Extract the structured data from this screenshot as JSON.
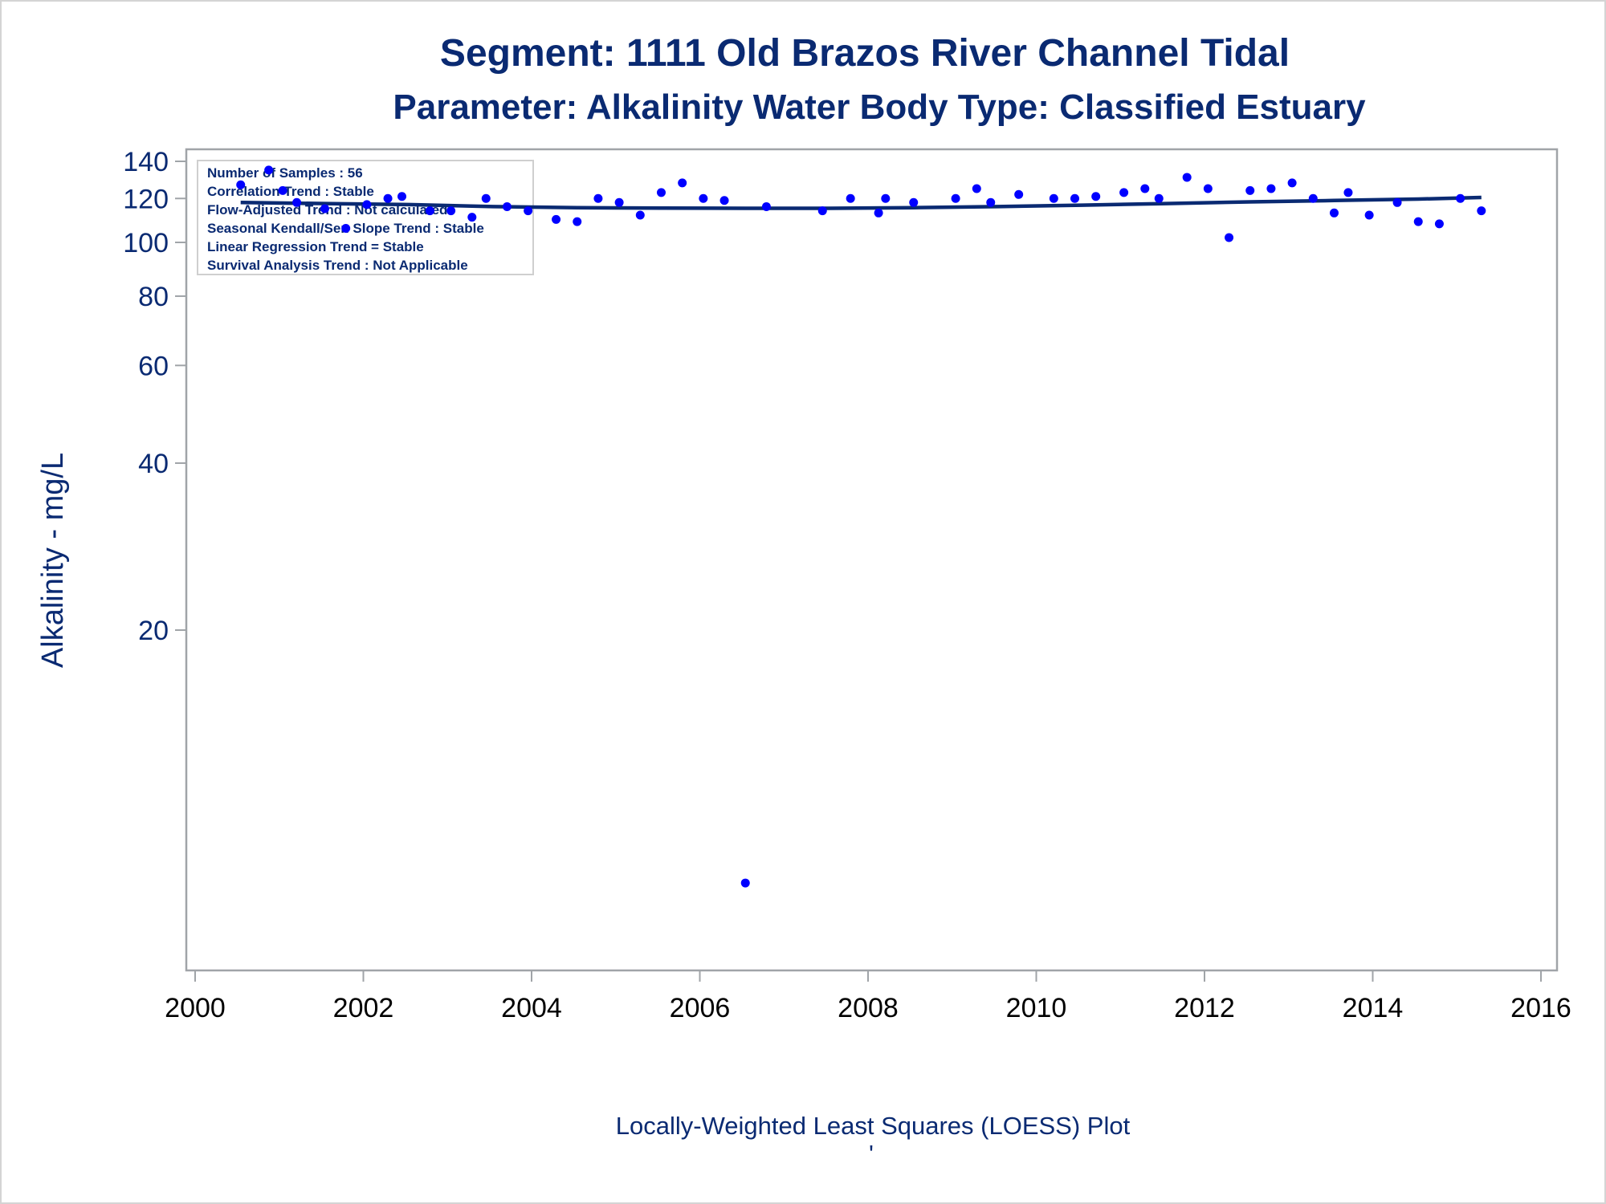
{
  "chart_data": {
    "type": "scatter",
    "title": "Segment: 1111  Old Brazos River Channel Tidal",
    "subtitle": "Parameter: Alkalinity   Water Body Type: Classified Estuary",
    "ylabel": "Alkalinity - mg/L",
    "xlabel": "",
    "footnote": "Locally-Weighted Least Squares (LOESS) Plot",
    "footnote_mark": "'",
    "y_scale": "log",
    "ylim": [
      6.7,
      145
    ],
    "xlim": [
      2000,
      2016.2
    ],
    "y_ticks": [
      20,
      40,
      60,
      80,
      100,
      120,
      140
    ],
    "x_ticks": [
      2000,
      2002,
      2004,
      2006,
      2008,
      2010,
      2012,
      2014,
      2016
    ],
    "grid": false,
    "inset_lines": [
      "Number of Samples : 56",
      "Correlation Trend : Stable",
      "Flow-Adjusted Trend : Not calculated",
      "Seasonal Kendall/Sen Slope Trend : Stable",
      "Linear Regression Trend = Stable",
      "Survival Analysis Trend : Not Applicable"
    ],
    "colors": {
      "points": "#0000ff",
      "loess_line": "#0a2a72",
      "text": "#0a2a72",
      "frame": "#a0a4a8"
    },
    "points": [
      {
        "x": "2000-07",
        "y": 127
      },
      {
        "x": "2000-11",
        "y": 135
      },
      {
        "x": "2001-01",
        "y": 124
      },
      {
        "x": "2001-03",
        "y": 118
      },
      {
        "x": "2001-07",
        "y": 115
      },
      {
        "x": "2001-10",
        "y": 106
      },
      {
        "x": "2002-01",
        "y": 117
      },
      {
        "x": "2002-04",
        "y": 120
      },
      {
        "x": "2002-06",
        "y": 121
      },
      {
        "x": "2002-10",
        "y": 114
      },
      {
        "x": "2003-01",
        "y": 114
      },
      {
        "x": "2003-04",
        "y": 111
      },
      {
        "x": "2003-06",
        "y": 120
      },
      {
        "x": "2003-09",
        "y": 116
      },
      {
        "x": "2003-12",
        "y": 114
      },
      {
        "x": "2004-04",
        "y": 110
      },
      {
        "x": "2004-07",
        "y": 109
      },
      {
        "x": "2004-10",
        "y": 120
      },
      {
        "x": "2005-01",
        "y": 118
      },
      {
        "x": "2005-04",
        "y": 112
      },
      {
        "x": "2005-07",
        "y": 123
      },
      {
        "x": "2005-10",
        "y": 128
      },
      {
        "x": "2006-01",
        "y": 120
      },
      {
        "x": "2006-04",
        "y": 119
      },
      {
        "x": "2006-07",
        "y": 7
      },
      {
        "x": "2006-10",
        "y": 116
      },
      {
        "x": "2007-06",
        "y": 114
      },
      {
        "x": "2007-10",
        "y": 120
      },
      {
        "x": "2008-02",
        "y": 113
      },
      {
        "x": "2008-03",
        "y": 120
      },
      {
        "x": "2008-07",
        "y": 118
      },
      {
        "x": "2009-01",
        "y": 120
      },
      {
        "x": "2009-04",
        "y": 125
      },
      {
        "x": "2009-06",
        "y": 118
      },
      {
        "x": "2009-10",
        "y": 122
      },
      {
        "x": "2010-03",
        "y": 120
      },
      {
        "x": "2010-06",
        "y": 120
      },
      {
        "x": "2010-09",
        "y": 121
      },
      {
        "x": "2011-01",
        "y": 123
      },
      {
        "x": "2011-04",
        "y": 125
      },
      {
        "x": "2011-06",
        "y": 120
      },
      {
        "x": "2011-10",
        "y": 131
      },
      {
        "x": "2012-01",
        "y": 125
      },
      {
        "x": "2012-04",
        "y": 102
      },
      {
        "x": "2012-07",
        "y": 124
      },
      {
        "x": "2012-10",
        "y": 125
      },
      {
        "x": "2013-01",
        "y": 128
      },
      {
        "x": "2013-04",
        "y": 120
      },
      {
        "x": "2013-07",
        "y": 113
      },
      {
        "x": "2013-09",
        "y": 123
      },
      {
        "x": "2013-12",
        "y": 112
      },
      {
        "x": "2014-04",
        "y": 118
      },
      {
        "x": "2014-07",
        "y": 109
      },
      {
        "x": "2014-10",
        "y": 108
      },
      {
        "x": "2015-01",
        "y": 120
      },
      {
        "x": "2015-04",
        "y": 114
      }
    ],
    "loess": [
      {
        "x": "2000-07",
        "y": 118
      },
      {
        "x": "2001-07",
        "y": 117.5
      },
      {
        "x": "2002-07",
        "y": 117
      },
      {
        "x": "2003-07",
        "y": 116
      },
      {
        "x": "2004-07",
        "y": 115.5
      },
      {
        "x": "2005-07",
        "y": 115.3
      },
      {
        "x": "2006-07",
        "y": 115.2
      },
      {
        "x": "2007-07",
        "y": 115.2
      },
      {
        "x": "2008-07",
        "y": 115.5
      },
      {
        "x": "2009-07",
        "y": 116
      },
      {
        "x": "2010-07",
        "y": 116.7
      },
      {
        "x": "2011-07",
        "y": 117.5
      },
      {
        "x": "2012-07",
        "y": 118.3
      },
      {
        "x": "2013-07",
        "y": 119
      },
      {
        "x": "2014-07",
        "y": 119.7
      },
      {
        "x": "2015-04",
        "y": 120.5
      }
    ]
  }
}
